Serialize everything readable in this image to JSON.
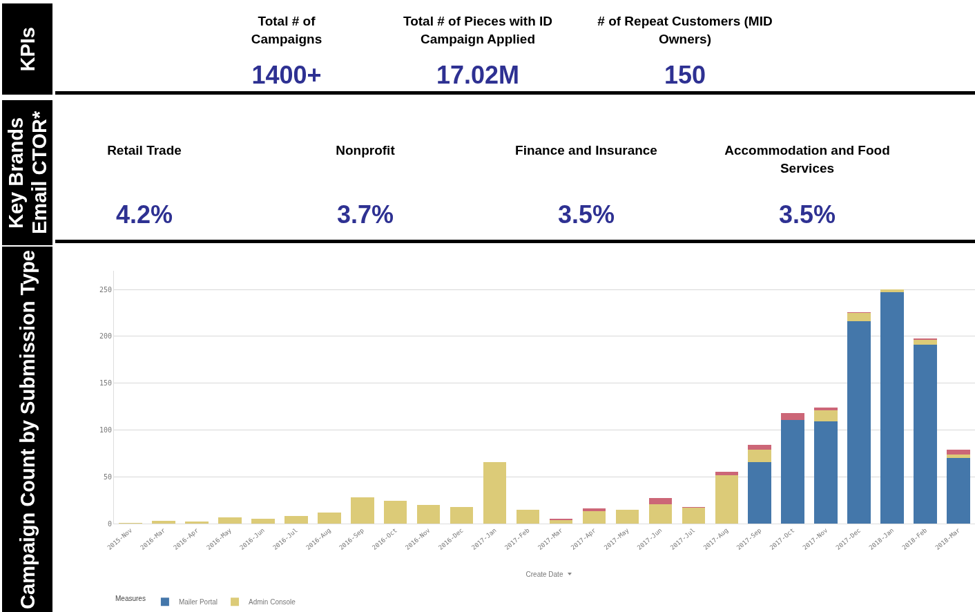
{
  "chart_data": [
    {
      "type": "other",
      "title": "KPIs",
      "annotations": [
        "Total # of Campaigns",
        "1400+",
        "Total # of Pieces with ID Campaign Applied",
        "17.02M",
        "# of Repeat Customers (MID Owners)",
        "150"
      ]
    },
    {
      "type": "other",
      "title": "Key Brands Email CTOR*",
      "annotations": [
        "Retail Trade",
        "4.2%",
        "Nonprofit",
        "3.7%",
        "Finance and Insurance",
        "3.5%",
        "Accommodation and Food Services",
        "3.5%"
      ]
    },
    {
      "type": "bar",
      "title": "Campaign Count by Submission Type",
      "xlabel": "Create Date",
      "legend_title": "Measures",
      "legend": "bottom left",
      "stacked": true,
      "grid": "y",
      "categories": [
        "2015-Nov",
        "2016-Mar",
        "2016-Apr",
        "2016-May",
        "2016-Jun",
        "2016-Jul",
        "2016-Aug",
        "2016-Sep",
        "2016-Oct",
        "2016-Nov",
        "2016-Dec",
        "2017-Jan",
        "2017-Feb",
        "2017-Mar",
        "2017-Apr",
        "2017-May",
        "2017-Jun",
        "2017-Jul",
        "2017-Aug",
        "2017-Sep",
        "2017-Oct",
        "2017-Nov",
        "2017-Dec",
        "2018-Jan",
        "2018-Feb",
        "2018-Mar"
      ],
      "series": [
        {
          "name": "Mailer Portal",
          "color": "#4477aa",
          "values": [
            0,
            0,
            0,
            0,
            0,
            0,
            0,
            0,
            0,
            0,
            0,
            0,
            0,
            0,
            0,
            0,
            0,
            0,
            0,
            66,
            111,
            109,
            216,
            247,
            191,
            70
          ]
        },
        {
          "name": "Admin Console",
          "color": "#dccb78",
          "values": [
            1,
            3,
            2,
            7,
            5,
            8,
            12,
            28,
            24,
            20,
            18,
            66,
            15,
            4,
            13,
            15,
            21,
            17,
            52,
            13,
            0,
            12,
            9,
            3,
            5,
            4
          ]
        },
        {
          "color": "#cc6677",
          "values": [
            0,
            0,
            0,
            0,
            0,
            0,
            0,
            0,
            0,
            0,
            0,
            0,
            0,
            1,
            3,
            0,
            6,
            1,
            3,
            5,
            7,
            3,
            1,
            0,
            2,
            5
          ]
        }
      ],
      "ylim": [
        0,
        270
      ],
      "yticks": [
        0,
        50,
        100,
        150,
        200,
        250
      ]
    }
  ]
}
